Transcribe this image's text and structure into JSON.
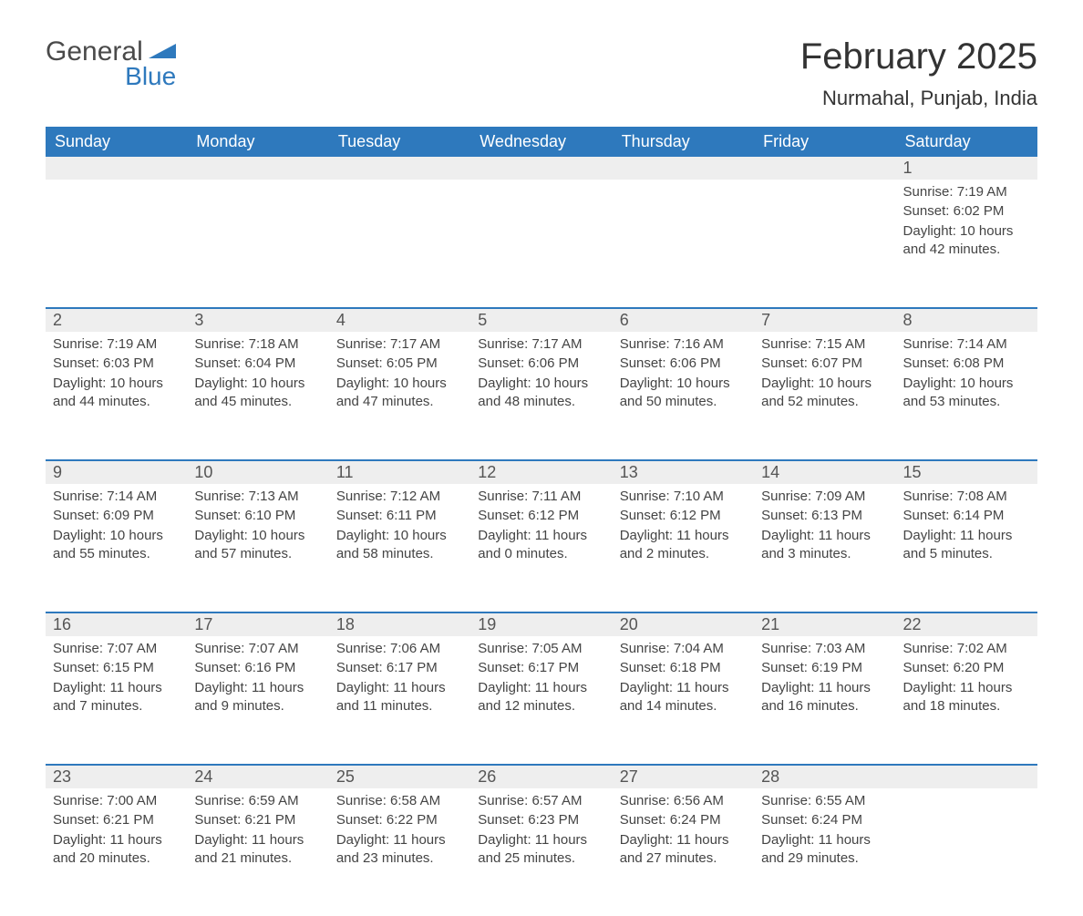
{
  "logo": {
    "word1": "General",
    "word2": "Blue",
    "color_general": "#4a4a4a",
    "color_blue": "#2e79bd"
  },
  "title": "February 2025",
  "location": "Nurmahal, Punjab, India",
  "header_bg": "#2e79bd",
  "header_fg": "#ffffff",
  "daynum_bg": "#eeeeee",
  "daynum_border": "#2e79bd",
  "text_color": "#444444",
  "title_fontsize": 40,
  "location_fontsize": 22,
  "header_fontsize": 18,
  "daynum_fontsize": 18,
  "body_fontsize": 15,
  "weekdays": [
    "Sunday",
    "Monday",
    "Tuesday",
    "Wednesday",
    "Thursday",
    "Friday",
    "Saturday"
  ],
  "weeks": [
    [
      null,
      null,
      null,
      null,
      null,
      null,
      {
        "n": "1",
        "sunrise": "Sunrise: 7:19 AM",
        "sunset": "Sunset: 6:02 PM",
        "daylight": "Daylight: 10 hours and 42 minutes."
      }
    ],
    [
      {
        "n": "2",
        "sunrise": "Sunrise: 7:19 AM",
        "sunset": "Sunset: 6:03 PM",
        "daylight": "Daylight: 10 hours and 44 minutes."
      },
      {
        "n": "3",
        "sunrise": "Sunrise: 7:18 AM",
        "sunset": "Sunset: 6:04 PM",
        "daylight": "Daylight: 10 hours and 45 minutes."
      },
      {
        "n": "4",
        "sunrise": "Sunrise: 7:17 AM",
        "sunset": "Sunset: 6:05 PM",
        "daylight": "Daylight: 10 hours and 47 minutes."
      },
      {
        "n": "5",
        "sunrise": "Sunrise: 7:17 AM",
        "sunset": "Sunset: 6:06 PM",
        "daylight": "Daylight: 10 hours and 48 minutes."
      },
      {
        "n": "6",
        "sunrise": "Sunrise: 7:16 AM",
        "sunset": "Sunset: 6:06 PM",
        "daylight": "Daylight: 10 hours and 50 minutes."
      },
      {
        "n": "7",
        "sunrise": "Sunrise: 7:15 AM",
        "sunset": "Sunset: 6:07 PM",
        "daylight": "Daylight: 10 hours and 52 minutes."
      },
      {
        "n": "8",
        "sunrise": "Sunrise: 7:14 AM",
        "sunset": "Sunset: 6:08 PM",
        "daylight": "Daylight: 10 hours and 53 minutes."
      }
    ],
    [
      {
        "n": "9",
        "sunrise": "Sunrise: 7:14 AM",
        "sunset": "Sunset: 6:09 PM",
        "daylight": "Daylight: 10 hours and 55 minutes."
      },
      {
        "n": "10",
        "sunrise": "Sunrise: 7:13 AM",
        "sunset": "Sunset: 6:10 PM",
        "daylight": "Daylight: 10 hours and 57 minutes."
      },
      {
        "n": "11",
        "sunrise": "Sunrise: 7:12 AM",
        "sunset": "Sunset: 6:11 PM",
        "daylight": "Daylight: 10 hours and 58 minutes."
      },
      {
        "n": "12",
        "sunrise": "Sunrise: 7:11 AM",
        "sunset": "Sunset: 6:12 PM",
        "daylight": "Daylight: 11 hours and 0 minutes."
      },
      {
        "n": "13",
        "sunrise": "Sunrise: 7:10 AM",
        "sunset": "Sunset: 6:12 PM",
        "daylight": "Daylight: 11 hours and 2 minutes."
      },
      {
        "n": "14",
        "sunrise": "Sunrise: 7:09 AM",
        "sunset": "Sunset: 6:13 PM",
        "daylight": "Daylight: 11 hours and 3 minutes."
      },
      {
        "n": "15",
        "sunrise": "Sunrise: 7:08 AM",
        "sunset": "Sunset: 6:14 PM",
        "daylight": "Daylight: 11 hours and 5 minutes."
      }
    ],
    [
      {
        "n": "16",
        "sunrise": "Sunrise: 7:07 AM",
        "sunset": "Sunset: 6:15 PM",
        "daylight": "Daylight: 11 hours and 7 minutes."
      },
      {
        "n": "17",
        "sunrise": "Sunrise: 7:07 AM",
        "sunset": "Sunset: 6:16 PM",
        "daylight": "Daylight: 11 hours and 9 minutes."
      },
      {
        "n": "18",
        "sunrise": "Sunrise: 7:06 AM",
        "sunset": "Sunset: 6:17 PM",
        "daylight": "Daylight: 11 hours and 11 minutes."
      },
      {
        "n": "19",
        "sunrise": "Sunrise: 7:05 AM",
        "sunset": "Sunset: 6:17 PM",
        "daylight": "Daylight: 11 hours and 12 minutes."
      },
      {
        "n": "20",
        "sunrise": "Sunrise: 7:04 AM",
        "sunset": "Sunset: 6:18 PM",
        "daylight": "Daylight: 11 hours and 14 minutes."
      },
      {
        "n": "21",
        "sunrise": "Sunrise: 7:03 AM",
        "sunset": "Sunset: 6:19 PM",
        "daylight": "Daylight: 11 hours and 16 minutes."
      },
      {
        "n": "22",
        "sunrise": "Sunrise: 7:02 AM",
        "sunset": "Sunset: 6:20 PM",
        "daylight": "Daylight: 11 hours and 18 minutes."
      }
    ],
    [
      {
        "n": "23",
        "sunrise": "Sunrise: 7:00 AM",
        "sunset": "Sunset: 6:21 PM",
        "daylight": "Daylight: 11 hours and 20 minutes."
      },
      {
        "n": "24",
        "sunrise": "Sunrise: 6:59 AM",
        "sunset": "Sunset: 6:21 PM",
        "daylight": "Daylight: 11 hours and 21 minutes."
      },
      {
        "n": "25",
        "sunrise": "Sunrise: 6:58 AM",
        "sunset": "Sunset: 6:22 PM",
        "daylight": "Daylight: 11 hours and 23 minutes."
      },
      {
        "n": "26",
        "sunrise": "Sunrise: 6:57 AM",
        "sunset": "Sunset: 6:23 PM",
        "daylight": "Daylight: 11 hours and 25 minutes."
      },
      {
        "n": "27",
        "sunrise": "Sunrise: 6:56 AM",
        "sunset": "Sunset: 6:24 PM",
        "daylight": "Daylight: 11 hours and 27 minutes."
      },
      {
        "n": "28",
        "sunrise": "Sunrise: 6:55 AM",
        "sunset": "Sunset: 6:24 PM",
        "daylight": "Daylight: 11 hours and 29 minutes."
      },
      null
    ]
  ]
}
